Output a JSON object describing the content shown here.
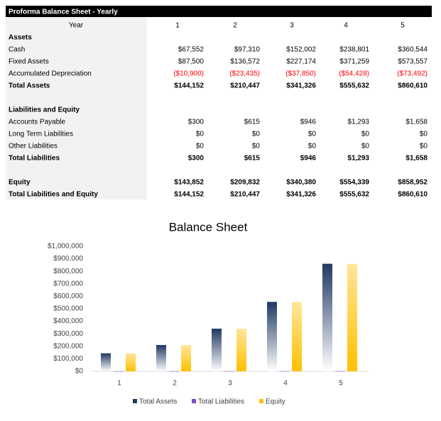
{
  "table": {
    "title": "Proforma Balance Sheet - Yearly",
    "header": "Year",
    "columns": [
      "1",
      "2",
      "3",
      "4",
      "5"
    ],
    "sections": [
      {
        "heading": "Assets",
        "rows": [
          {
            "label": "Cash",
            "values": [
              "$67,552",
              "$97,310",
              "$152,002",
              "$238,801",
              "$360,544"
            ]
          },
          {
            "label": "Fixed Assets",
            "values": [
              "$87,500",
              "$136,572",
              "$227,174",
              "$371,259",
              "$573,557"
            ]
          },
          {
            "label": "Accumulated Depreciation",
            "values": [
              "($10,900)",
              "($23,435)",
              "($37,850)",
              "($54,428)",
              "($73,492)"
            ],
            "color": "#ff0000"
          },
          {
            "label": "Total Assets",
            "values": [
              "$144,152",
              "$210,447",
              "$341,326",
              "$555,632",
              "$860,610"
            ],
            "bold": true
          }
        ]
      },
      {
        "heading": "Liabilities and Equity",
        "rows": [
          {
            "label": "Accounts Payable",
            "values": [
              "$300",
              "$615",
              "$946",
              "$1,293",
              "$1,658"
            ]
          },
          {
            "label": "Long Term Liabilities",
            "values": [
              "$0",
              "$0",
              "$0",
              "$0",
              "$0"
            ]
          },
          {
            "label": "Other Liabilities",
            "values": [
              "$0",
              "$0",
              "$0",
              "$0",
              "$0"
            ]
          },
          {
            "label": "Total Liabilities",
            "values": [
              "$300",
              "$615",
              "$946",
              "$1,293",
              "$1,658"
            ],
            "bold": true
          }
        ]
      },
      {
        "rows": [
          {
            "label": "Equity",
            "values": [
              "$143,852",
              "$209,832",
              "$340,380",
              "$554,339",
              "$858,952"
            ],
            "bold": true
          },
          {
            "label": "Total Liabilities and Equity",
            "values": [
              "$144,152",
              "$210,447",
              "$341,326",
              "$555,632",
              "$860,610"
            ],
            "bold": true
          }
        ]
      }
    ]
  },
  "chart_data": {
    "type": "bar",
    "title": "Balance Sheet",
    "categories": [
      "1",
      "2",
      "3",
      "4",
      "5"
    ],
    "series": [
      {
        "name": "Total Assets",
        "color": "#203864",
        "values": [
          144152,
          210447,
          341326,
          555632,
          860610
        ]
      },
      {
        "name": "Total Liabilities",
        "color": "#7f4fc9",
        "values": [
          300,
          615,
          946,
          1293,
          1658
        ]
      },
      {
        "name": "Equity",
        "color": "#ffc000",
        "values": [
          143852,
          209832,
          340380,
          554339,
          858952
        ]
      }
    ],
    "ylim": [
      0,
      1000000
    ],
    "yticks": [
      {
        "value": 0,
        "label": "$0"
      },
      {
        "value": 100000,
        "label": "$100,000"
      },
      {
        "value": 200000,
        "label": "$200,000"
      },
      {
        "value": 300000,
        "label": "$300,000"
      },
      {
        "value": 400000,
        "label": "$400,000"
      },
      {
        "value": 500000,
        "label": "$500,000"
      },
      {
        "value": 600000,
        "label": "$600,000"
      },
      {
        "value": 700000,
        "label": "$700,000"
      },
      {
        "value": 800000,
        "label": "$800,000"
      },
      {
        "value": 900000,
        "label": "$900,000"
      },
      {
        "value": 1000000,
        "label": "$1,000,000"
      }
    ],
    "legend": "bottom"
  }
}
